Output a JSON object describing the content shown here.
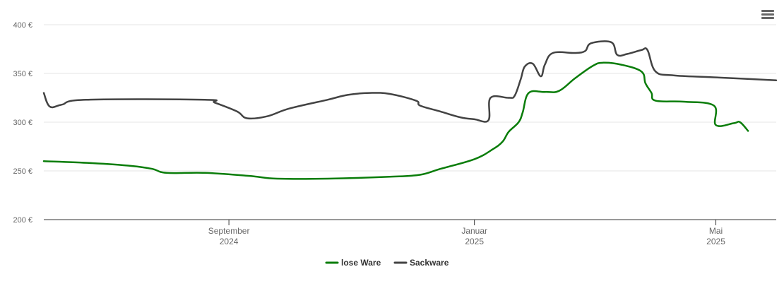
{
  "menu": {
    "icon": "hamburger-menu-icon"
  },
  "chart_data": {
    "type": "line",
    "title": "",
    "xlabel": "",
    "ylabel": "",
    "ylim": [
      200,
      400
    ],
    "y_ticks": [
      200,
      250,
      300,
      350,
      400
    ],
    "y_tick_labels": [
      "200 €",
      "250 €",
      "300 €",
      "350 €",
      "400 €"
    ],
    "x_range": [
      "2024-06-01",
      "2025-05-31"
    ],
    "x_ticks": [
      {
        "date": "2024-09-01",
        "label": "September",
        "sub": "2024"
      },
      {
        "date": "2025-01-01",
        "label": "Januar",
        "sub": "2025"
      },
      {
        "date": "2025-05-01",
        "label": "Mai",
        "sub": "2025"
      }
    ],
    "grid": true,
    "legend_position": "bottom-center",
    "series": [
      {
        "name": "lose Ware",
        "color": "#0a7d0a",
        "points": [
          [
            "2024-06-01",
            260
          ],
          [
            "2024-06-25",
            258
          ],
          [
            "2024-07-15",
            255
          ],
          [
            "2024-07-25",
            252
          ],
          [
            "2024-08-01",
            248
          ],
          [
            "2024-08-20",
            248
          ],
          [
            "2024-09-10",
            245
          ],
          [
            "2024-09-15",
            244
          ],
          [
            "2024-09-25",
            242
          ],
          [
            "2024-10-20",
            242
          ],
          [
            "2024-11-20",
            244
          ],
          [
            "2024-12-05",
            246
          ],
          [
            "2024-12-15",
            252
          ],
          [
            "2025-01-01",
            262
          ],
          [
            "2025-01-10",
            272
          ],
          [
            "2025-01-15",
            280
          ],
          [
            "2025-01-18",
            290
          ],
          [
            "2025-01-23",
            300
          ],
          [
            "2025-01-25",
            310
          ],
          [
            "2025-01-28",
            330
          ],
          [
            "2025-02-05",
            331
          ],
          [
            "2025-02-12",
            332
          ],
          [
            "2025-02-20",
            345
          ],
          [
            "2025-03-01",
            358
          ],
          [
            "2025-03-06",
            361
          ],
          [
            "2025-03-15",
            359
          ],
          [
            "2025-03-25",
            352
          ],
          [
            "2025-03-27",
            340
          ],
          [
            "2025-03-30",
            330
          ],
          [
            "2025-04-01",
            322
          ],
          [
            "2025-04-15",
            321
          ],
          [
            "2025-04-30",
            317
          ],
          [
            "2025-05-01",
            297
          ],
          [
            "2025-05-10",
            299
          ],
          [
            "2025-05-13",
            300
          ],
          [
            "2025-05-17",
            291
          ]
        ]
      },
      {
        "name": "Sackware",
        "color": "#434343",
        "points": [
          [
            "2024-06-01",
            330
          ],
          [
            "2024-06-04",
            316
          ],
          [
            "2024-06-10",
            318
          ],
          [
            "2024-06-22",
            323
          ],
          [
            "2024-08-20",
            323
          ],
          [
            "2024-08-25",
            320
          ],
          [
            "2024-09-05",
            311
          ],
          [
            "2024-09-10",
            304
          ],
          [
            "2024-09-20",
            306
          ],
          [
            "2024-10-01",
            314
          ],
          [
            "2024-10-20",
            323
          ],
          [
            "2024-10-30",
            328
          ],
          [
            "2024-11-10",
            330
          ],
          [
            "2024-11-20",
            329
          ],
          [
            "2024-12-03",
            322
          ],
          [
            "2024-12-05",
            317
          ],
          [
            "2024-12-15",
            311
          ],
          [
            "2024-12-25",
            305
          ],
          [
            "2025-01-01",
            303
          ],
          [
            "2025-01-08",
            302
          ],
          [
            "2025-01-09",
            325
          ],
          [
            "2025-01-18",
            325
          ],
          [
            "2025-01-21",
            327
          ],
          [
            "2025-01-24",
            344
          ],
          [
            "2025-01-26",
            357
          ],
          [
            "2025-01-30",
            360
          ],
          [
            "2025-02-03",
            347
          ],
          [
            "2025-02-05",
            359
          ],
          [
            "2025-02-09",
            371
          ],
          [
            "2025-02-20",
            371
          ],
          [
            "2025-02-25",
            373
          ],
          [
            "2025-02-28",
            381
          ],
          [
            "2025-03-10",
            382
          ],
          [
            "2025-03-13",
            369
          ],
          [
            "2025-03-18",
            370
          ],
          [
            "2025-03-25",
            374
          ],
          [
            "2025-03-28",
            374
          ],
          [
            "2025-04-01",
            352
          ],
          [
            "2025-04-10",
            348
          ],
          [
            "2025-04-30",
            346
          ],
          [
            "2025-05-31",
            343
          ]
        ]
      }
    ]
  }
}
